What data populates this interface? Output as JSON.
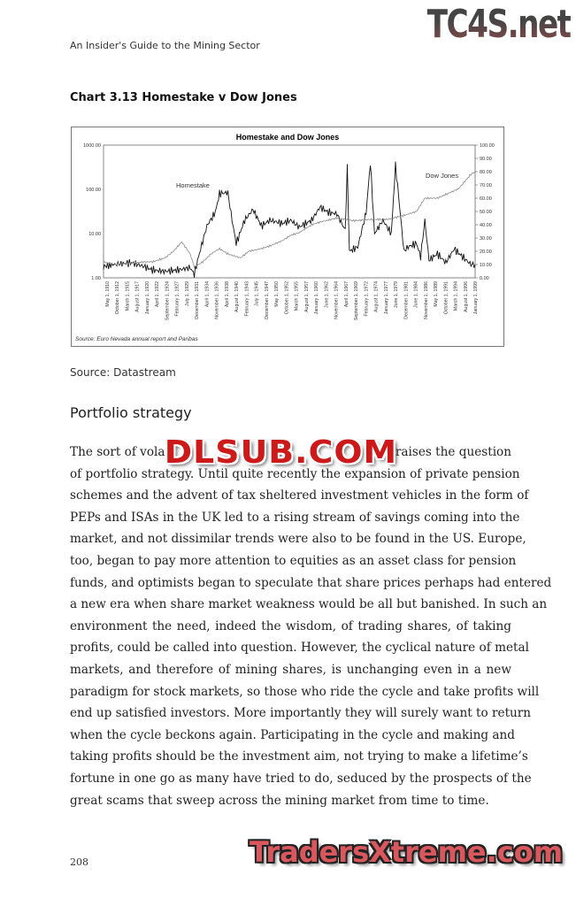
{
  "header": {
    "running_title": "An Insider's Guide to the Mining Sector",
    "watermark_top": "TC4S.net"
  },
  "chart_caption": "Chart 3.13 Homestake v Dow Jones",
  "chart_data": {
    "type": "line",
    "title": "Homestake and Dow Jones",
    "source_note": "Source: Euro Nevada annual report and Paribas",
    "left_axis": {
      "scale": "log",
      "range": [
        1,
        1000
      ],
      "ticks": [
        "1.00",
        "10.00",
        "100.00",
        "1000.00"
      ]
    },
    "right_axis": {
      "scale": "linear",
      "range": [
        0,
        100
      ],
      "ticks": [
        "0.00",
        "10.00",
        "20.00",
        "30.00",
        "40.00",
        "50.00",
        "60.00",
        "70.00",
        "80.00",
        "90.00",
        "100.00"
      ]
    },
    "x_ticks": [
      "May 1, 1910",
      "October 1, 1912",
      "March 1, 1915",
      "August 1, 1917",
      "January 1, 1920",
      "April 1, 1922",
      "September 1, 1924",
      "February 1, 1927",
      "July 1, 1929",
      "December 1, 1931",
      "April 1, 1934",
      "November 1, 1936",
      "April 1, 1938",
      "August 1, 1940",
      "February 1, 1943",
      "July 1, 1945",
      "December 1, 1947",
      "May 1, 1950",
      "October 1, 1952",
      "March 1, 1955",
      "August 1, 1957",
      "January 1, 1960",
      "June 1, 1962",
      "November 1, 1964",
      "April 1, 1967",
      "September 1, 1969",
      "February 1, 1972",
      "August 1, 1974",
      "January 1, 1977",
      "June 1, 1979",
      "December 1, 1981",
      "June 1, 1984",
      "November 1, 1986",
      "May 1, 1989",
      "October 1, 1991",
      "March 1, 1994",
      "August 1, 1996",
      "January 1, 1999"
    ],
    "series": [
      {
        "name": "Homestake",
        "axis": "left",
        "color": "#111111",
        "x": [
          1910.3,
          1913,
          1917,
          1920,
          1922,
          1925,
          1928,
          1931,
          1932,
          1933,
          1935,
          1937,
          1938,
          1940,
          1941,
          1942,
          1944,
          1946,
          1948,
          1950,
          1953,
          1955,
          1957,
          1960,
          1962,
          1964,
          1966,
          1968,
          1968.5,
          1969,
          1971,
          1973,
          1974,
          1975,
          1977,
          1979,
          1980,
          1981,
          1982,
          1983,
          1985,
          1986,
          1987,
          1988,
          1990,
          1992,
          1994,
          1996,
          1998,
          1999
        ],
        "y": [
          1.8,
          2,
          2.2,
          1.8,
          1.5,
          1.4,
          1.5,
          1.7,
          1.2,
          3,
          15,
          30,
          80,
          85,
          20,
          6,
          20,
          35,
          15,
          20,
          17,
          20,
          14,
          20,
          40,
          30,
          28,
          12,
          300,
          4,
          5,
          30,
          400,
          10,
          20,
          10,
          350,
          40,
          4,
          5,
          6,
          3,
          20,
          2.5,
          3.5,
          2.2,
          4.5,
          3,
          2,
          2
        ]
      },
      {
        "name": "Dow Jones",
        "axis": "right",
        "color": "#888888",
        "x": [
          1910.3,
          1913,
          1917,
          1920,
          1922,
          1925,
          1927,
          1929,
          1931,
          1932,
          1934,
          1936,
          1938,
          1940,
          1943,
          1945,
          1948,
          1950,
          1953,
          1955,
          1957,
          1960,
          1962,
          1966,
          1970,
          1974,
          1978,
          1982,
          1985,
          1987,
          1990,
          1995,
          1998,
          1999
        ],
        "y": [
          12,
          10,
          11,
          12,
          12,
          15,
          20,
          27,
          18,
          8,
          12,
          18,
          22,
          18,
          15,
          20,
          22,
          24,
          28,
          32,
          34,
          40,
          42,
          45,
          43,
          44,
          44,
          47,
          50,
          60,
          60,
          67,
          78,
          80
        ]
      }
    ],
    "legend": "inline labels"
  },
  "source_line": "Source: Datastream",
  "section_heading": "Portfolio strategy",
  "body": {
    "first_line_left": "The sort of volat",
    "first_line_right": "raises the question",
    "lines": [
      "of portfolio strategy. Until quite recently the expansion of private pension",
      "schemes and the advent of tax sheltered investment vehicles in the form of",
      "PEPs and ISAs in the UK led to a rising stream of savings coming into the",
      "market, and not dissimilar trends were also to be found in the US. Europe,",
      "too, began to pay more attention to equities as an asset class for pension",
      "funds, and optimists began to speculate that share prices perhaps had entered",
      "a new era when share market weakness would be all but banished. In such an",
      "environment the need, indeed the wisdom, of trading shares, of taking",
      "profits, could be called into question. However, the cyclical nature of metal",
      "markets, and therefore of mining shares, is unchanging even in a new",
      "paradigm for stock markets, so those who ride the cycle and take profits will",
      "end up satisfied investors. More importantly they will surely want to return",
      "when the cycle beckons again. Participating in the cycle and making and",
      "taking profits should be the investment aim, not trying to make a lifetime’s",
      "fortune in one go as many have tried to do, seduced by the prospects of the",
      "great scams that sweep across the mining market from time to time."
    ]
  },
  "watermarks": {
    "middle": "DLSUB.COM",
    "bottom": "TradersXtreme.com"
  },
  "page_number": "208"
}
